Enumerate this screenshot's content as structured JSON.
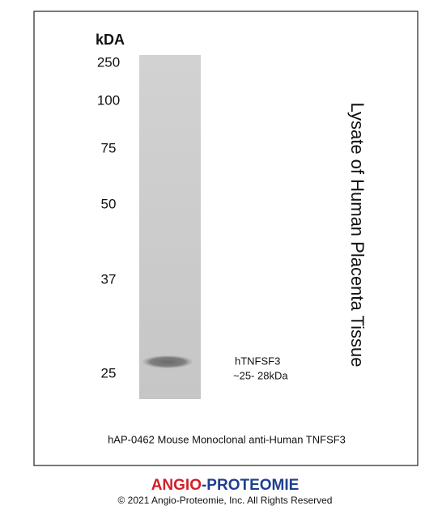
{
  "blot": {
    "unit_label": "kDA",
    "markers": [
      "250",
      "100",
      "75",
      "50",
      "37",
      "25"
    ],
    "band_label": [
      "hTNFSF3",
      "~25- 28kDa"
    ],
    "sample": "Lysate of Human Placenta Tissue",
    "caption": "hAP-0462 Mouse Monoclonal anti-Human TNFSF3"
  },
  "footer": {
    "brand": [
      "ANGIO",
      "-PROTEOMIE"
    ],
    "copyright": "© 2021 Angio-Proteomie, Inc. All Rights Reserved"
  }
}
